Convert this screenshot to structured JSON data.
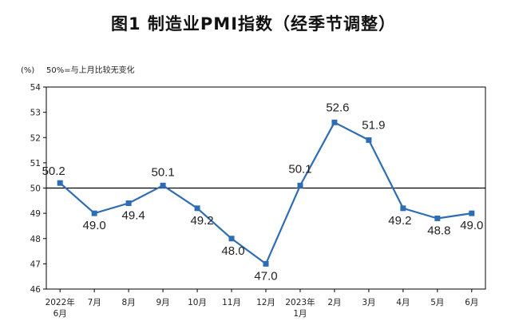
{
  "title": "图1  制造业PMI指数（经季节调整）",
  "chart_data": {
    "type": "line",
    "unit_label": "(%)",
    "annotation": "50%=与上月比较无变化",
    "categories": [
      [
        "2022年",
        "6月"
      ],
      [
        "7月"
      ],
      [
        "8月"
      ],
      [
        "9月"
      ],
      [
        "10月"
      ],
      [
        "11月"
      ],
      [
        "12月"
      ],
      [
        "2023年",
        "1月"
      ],
      [
        "2月"
      ],
      [
        "3月"
      ],
      [
        "4月"
      ],
      [
        "5月"
      ],
      [
        "6月"
      ]
    ],
    "series": [
      {
        "values": [
          50.2,
          49.0,
          49.4,
          50.1,
          49.2,
          48.0,
          47.0,
          50.1,
          52.6,
          51.9,
          49.2,
          48.8,
          49.0
        ]
      }
    ],
    "data_labels": [
      "50.2",
      "49.0",
      "49.4",
      "50.1",
      "49.2",
      "48.0",
      "47.0",
      "50.1",
      "52.6",
      "51.9",
      "49.2",
      "48.8",
      "49.0"
    ],
    "ylim": [
      46,
      54
    ],
    "yticks": [
      "46",
      "47",
      "48",
      "49",
      "50",
      "51",
      "52",
      "53",
      "54"
    ],
    "reference_line": 50,
    "grid": false,
    "colors": {
      "line": "#2E6DB4",
      "marker": "#2E6DB4",
      "reference": "#000000"
    }
  }
}
